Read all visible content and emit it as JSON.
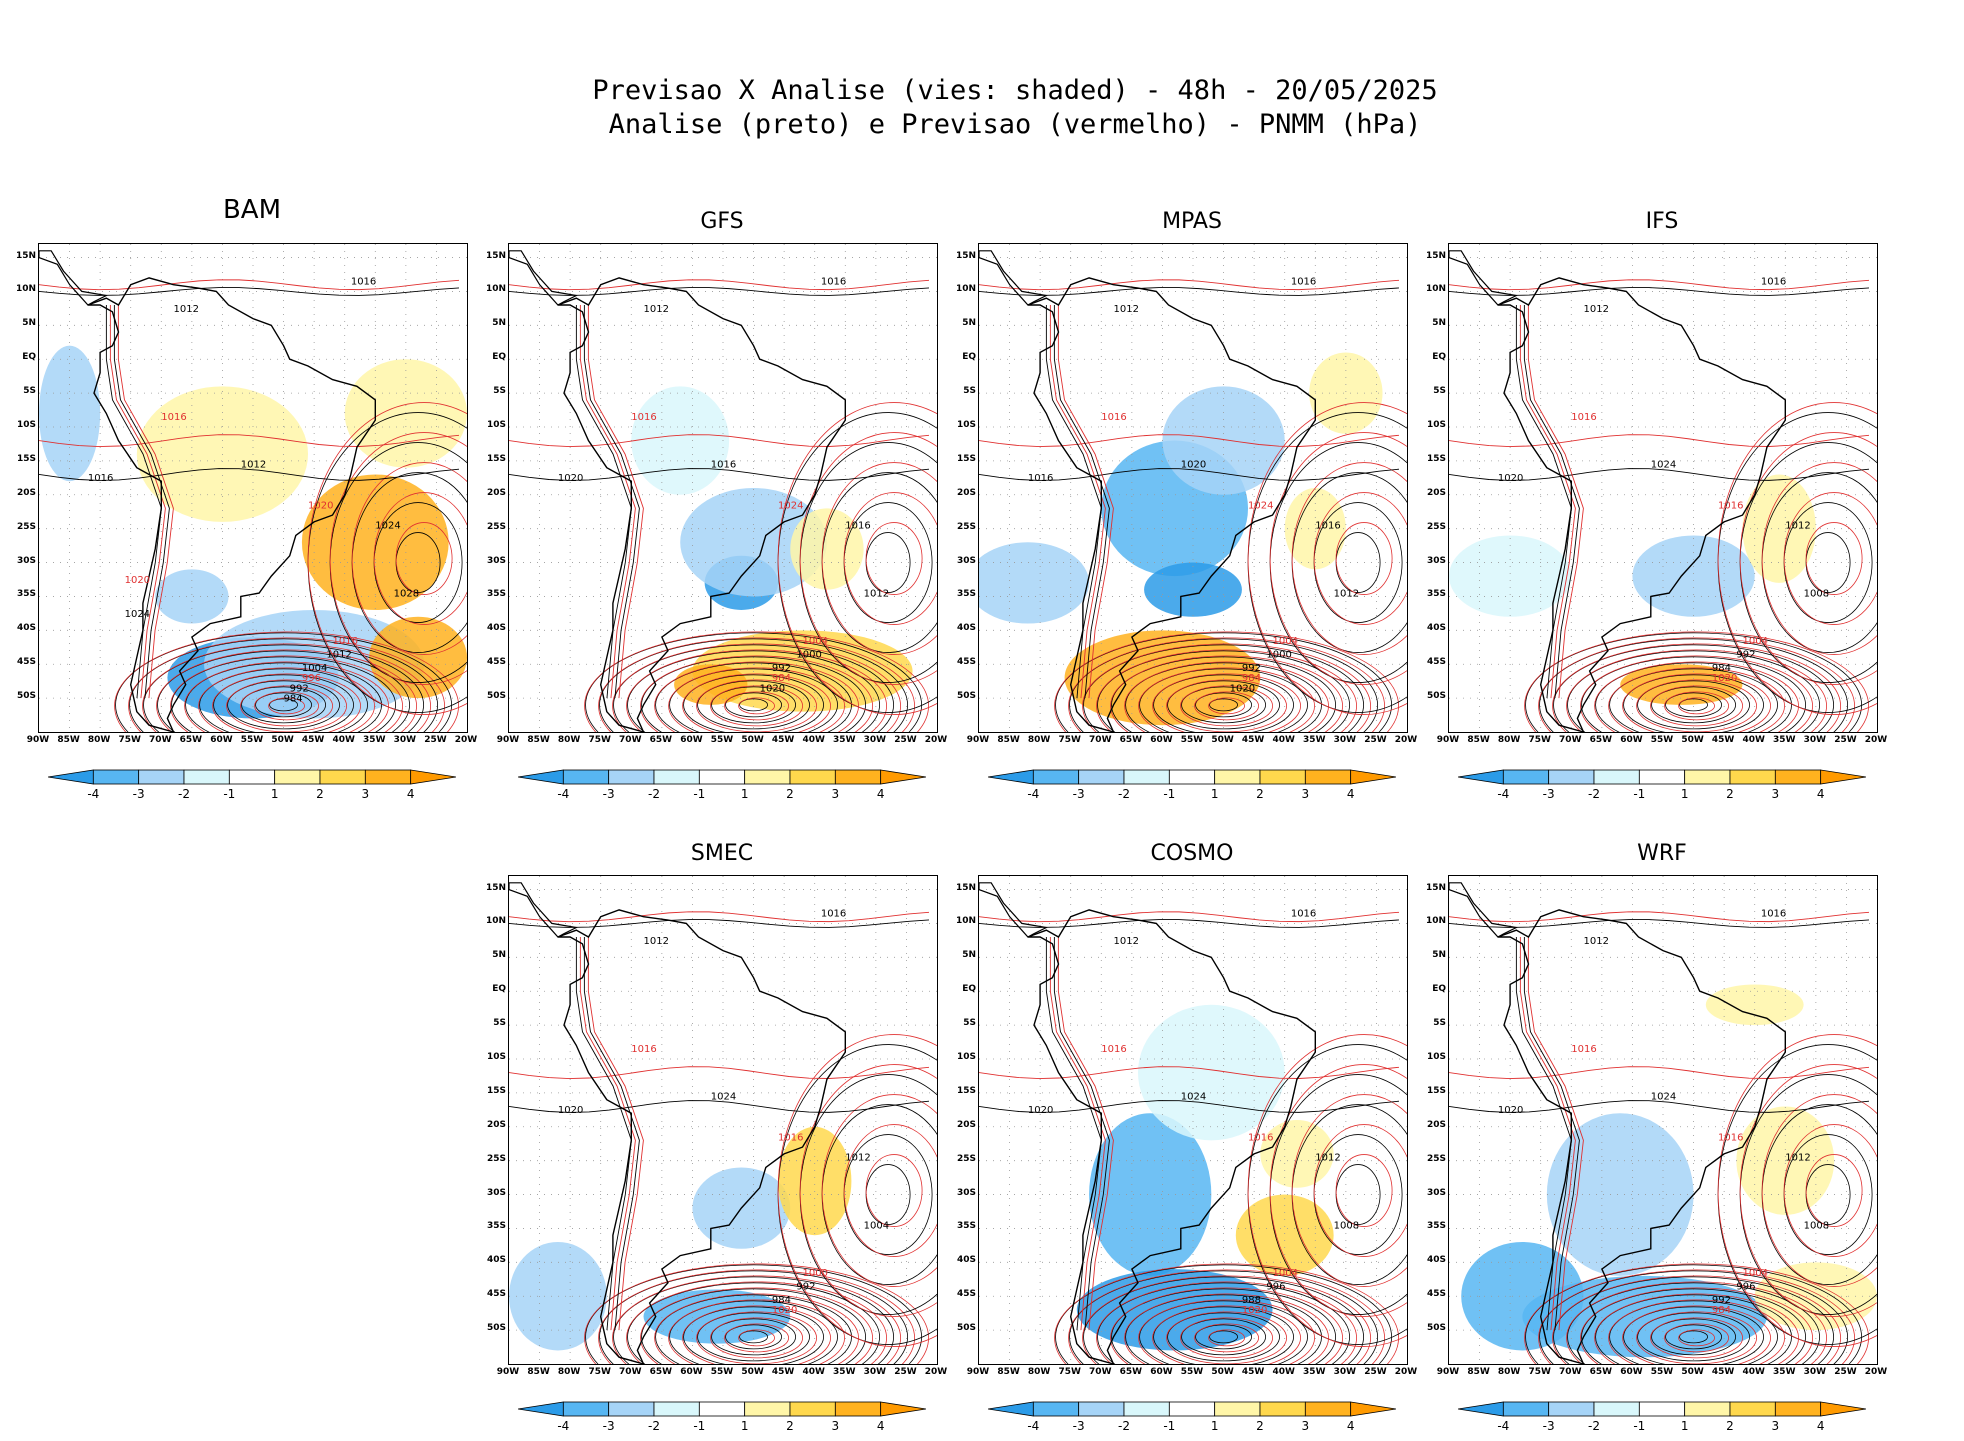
{
  "header": {
    "line1": "Previsao X Analise (vies: shaded) - 48h - 20/05/2025",
    "line2": "Analise (preto) e Previsao (vermelho) - PNMM (hPa)"
  },
  "panels": [
    {
      "model": "BAM",
      "contour_labels": [
        "1016",
        "1012",
        "1016",
        "1016",
        "1012",
        "1020",
        "1024",
        "1028",
        "1016",
        "1012",
        "1004",
        "996",
        "992",
        "984",
        "1020",
        "1024"
      ]
    },
    {
      "model": "GFS",
      "contour_labels": [
        "1016",
        "1012",
        "1016",
        "1020",
        "1016",
        "1024",
        "1016",
        "1012",
        "1004",
        "1000",
        "992",
        "984",
        "1020"
      ]
    },
    {
      "model": "MPAS",
      "contour_labels": [
        "1016",
        "1012",
        "1016",
        "1016",
        "1020",
        "1024",
        "1016",
        "1012",
        "1004",
        "1000",
        "992",
        "984",
        "1020"
      ]
    },
    {
      "model": "IFS",
      "contour_labels": [
        "1016",
        "1012",
        "1016",
        "1020",
        "1024",
        "1016",
        "1012",
        "1008",
        "1004",
        "992",
        "984",
        "1020"
      ]
    },
    {
      "model": "SMEC",
      "contour_labels": [
        "1016",
        "1012",
        "1016",
        "1020",
        "1024",
        "1016",
        "1012",
        "1004",
        "1000",
        "992",
        "984",
        "1020"
      ]
    },
    {
      "model": "COSMO",
      "contour_labels": [
        "1016",
        "1012",
        "1016",
        "1020",
        "1024",
        "1016",
        "1012",
        "1008",
        "1004",
        "996",
        "988",
        "1020"
      ]
    },
    {
      "model": "WRF",
      "contour_labels": [
        "1016",
        "1012",
        "1016",
        "1020",
        "1024",
        "1016",
        "1012",
        "1008",
        "1004",
        "996",
        "992",
        "984"
      ]
    }
  ],
  "axes": {
    "lat_labels": [
      "15N",
      "10N",
      "5N",
      "EQ",
      "5S",
      "10S",
      "15S",
      "20S",
      "25S",
      "30S",
      "35S",
      "40S",
      "45S",
      "50S"
    ],
    "lon_labels": [
      "90W",
      "85W",
      "80W",
      "75W",
      "70W",
      "65W",
      "60W",
      "55W",
      "50W",
      "45W",
      "40W",
      "35W",
      "30W",
      "25W",
      "20W"
    ]
  },
  "colorbar": {
    "labels": [
      "-4",
      "-3",
      "-2",
      "-1",
      "1",
      "2",
      "3",
      "4"
    ],
    "colors": [
      "#2b9be8",
      "#57b6f2",
      "#a6d4f7",
      "#d9f7fb",
      "#ffffff",
      "#fff6a8",
      "#ffd84d",
      "#ffb21f",
      "#ff9a00"
    ]
  },
  "colors": {
    "analysis": "#000000",
    "forecast": "#e03030"
  }
}
